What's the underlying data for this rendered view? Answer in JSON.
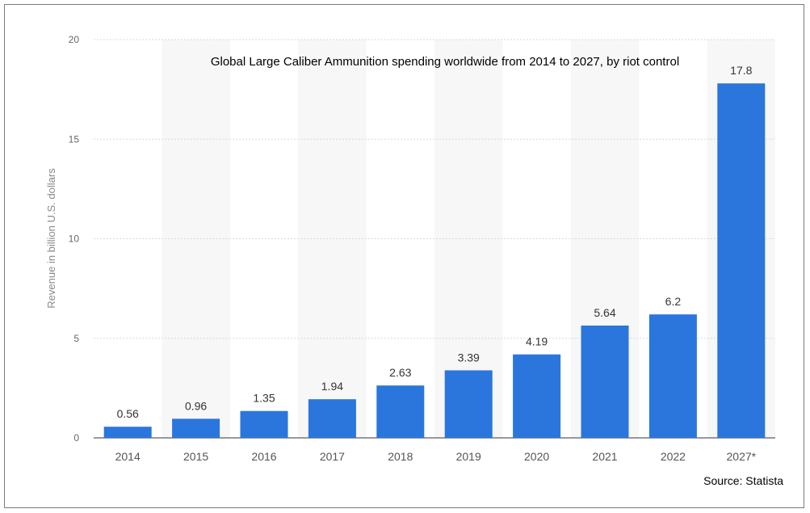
{
  "chart_data": {
    "type": "bar",
    "title": "Global Large Caliber Ammunition spending worldwide from 2014 to 2027, by riot control",
    "ylabel": "Revenue in billion U.S. dollars",
    "xlabel": "",
    "categories": [
      "2014",
      "2015",
      "2016",
      "2017",
      "2018",
      "2019",
      "2020",
      "2021",
      "2022",
      "2027*"
    ],
    "values": [
      0.56,
      0.96,
      1.35,
      1.94,
      2.63,
      3.39,
      4.19,
      5.64,
      6.2,
      17.8
    ],
    "value_labels": [
      "0.56",
      "0.96",
      "1.35",
      "1.94",
      "2.63",
      "3.39",
      "4.19",
      "5.64",
      "6.2",
      "17.8"
    ],
    "ylim": [
      0,
      20
    ],
    "yticks": [
      0,
      5,
      10,
      15,
      20
    ],
    "ytick_labels": [
      "0",
      "5",
      "10",
      "15",
      "20"
    ],
    "grid": true,
    "bar_color": "#2a76dd",
    "band_color": "#f7f7f7",
    "source": "Source: Statista"
  }
}
